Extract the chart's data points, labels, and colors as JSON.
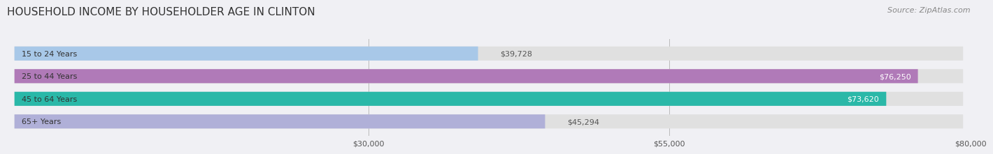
{
  "title": "HOUSEHOLD INCOME BY HOUSEHOLDER AGE IN CLINTON",
  "source": "Source: ZipAtlas.com",
  "categories": [
    "15 to 24 Years",
    "25 to 44 Years",
    "45 to 64 Years",
    "65+ Years"
  ],
  "values": [
    39728,
    76250,
    73620,
    45294
  ],
  "bar_colors": [
    "#a8c8e8",
    "#b07ab8",
    "#2ab8a8",
    "#b0b0d8"
  ],
  "label_colors": [
    "#555555",
    "#ffffff",
    "#ffffff",
    "#555555"
  ],
  "xmin": 0,
  "xmax": 80000,
  "xticks": [
    30000,
    55000,
    80000
  ],
  "xtick_labels": [
    "$30,000",
    "$55,000",
    "$80,000"
  ],
  "title_fontsize": 11,
  "source_fontsize": 8,
  "bar_height": 0.62,
  "background_color": "#f0f0f4",
  "bar_bg_color": "#e0e0e0"
}
